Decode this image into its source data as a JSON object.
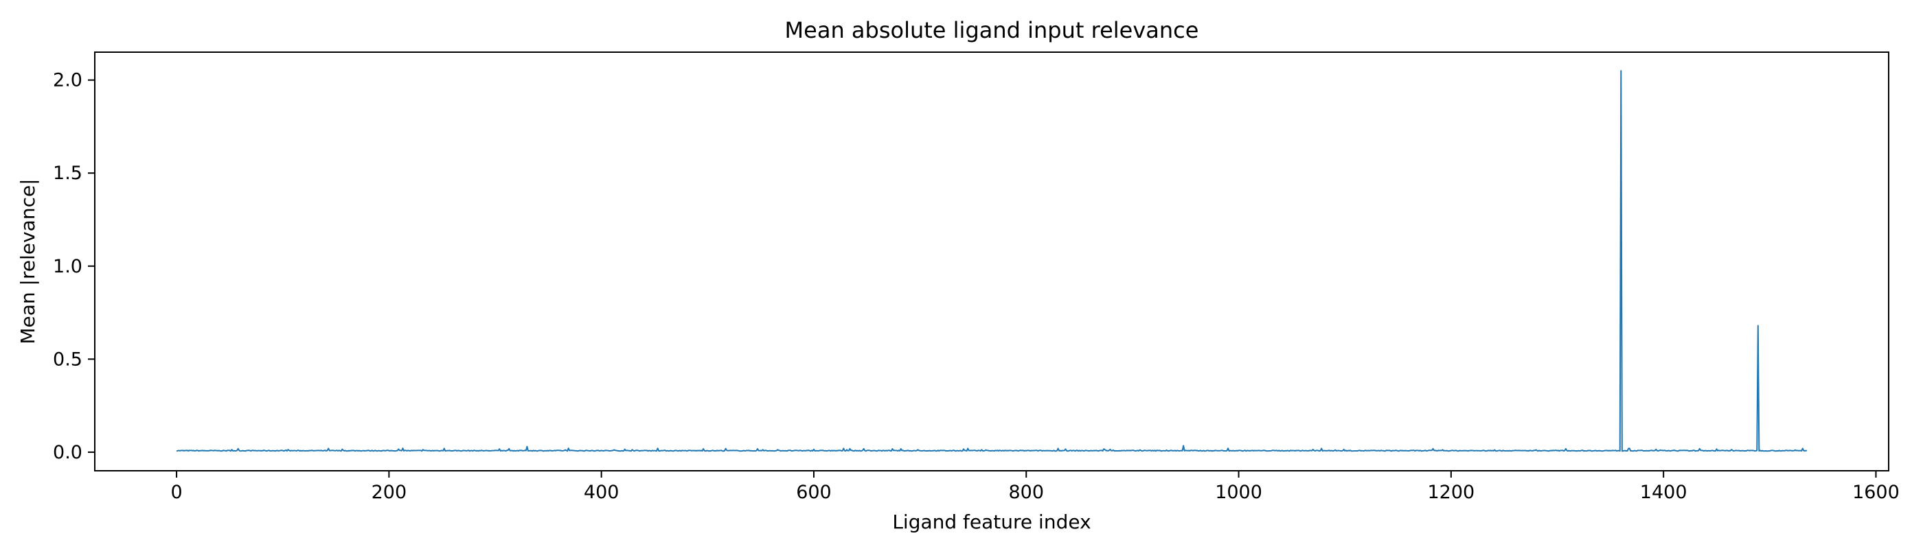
{
  "chart_data": {
    "type": "line",
    "title": "Mean absolute ligand input relevance",
    "xlabel": "Ligand feature index",
    "ylabel": "Mean |relevance|",
    "xlim": [
      -77,
      1612
    ],
    "ylim": [
      -0.1,
      2.15
    ],
    "xticks": [
      0,
      200,
      400,
      600,
      800,
      1000,
      1200,
      1400,
      1600
    ],
    "yticks": [
      0.0,
      0.5,
      1.0,
      1.5,
      2.0
    ],
    "xtick_labels": [
      "0",
      "200",
      "400",
      "600",
      "800",
      "1000",
      "1200",
      "1400",
      "1600"
    ],
    "ytick_labels": [
      "0.0",
      "0.5",
      "1.0",
      "1.5",
      "2.0"
    ],
    "grid": false,
    "legend": "none",
    "series": [
      {
        "color": "#1f77b4",
        "x_start": 0,
        "x_end": 1535,
        "baseline": 0.008,
        "baseline_noise": 0.004,
        "peaks": [
          {
            "x": 143,
            "y": 0.02
          },
          {
            "x": 252,
            "y": 0.02
          },
          {
            "x": 330,
            "y": 0.03
          },
          {
            "x": 547,
            "y": 0.018
          },
          {
            "x": 682,
            "y": 0.018
          },
          {
            "x": 745,
            "y": 0.02
          },
          {
            "x": 830,
            "y": 0.02
          },
          {
            "x": 948,
            "y": 0.035
          },
          {
            "x": 1078,
            "y": 0.02
          },
          {
            "x": 1360,
            "y": 2.05
          },
          {
            "x": 1489,
            "y": 0.68
          }
        ]
      }
    ]
  }
}
